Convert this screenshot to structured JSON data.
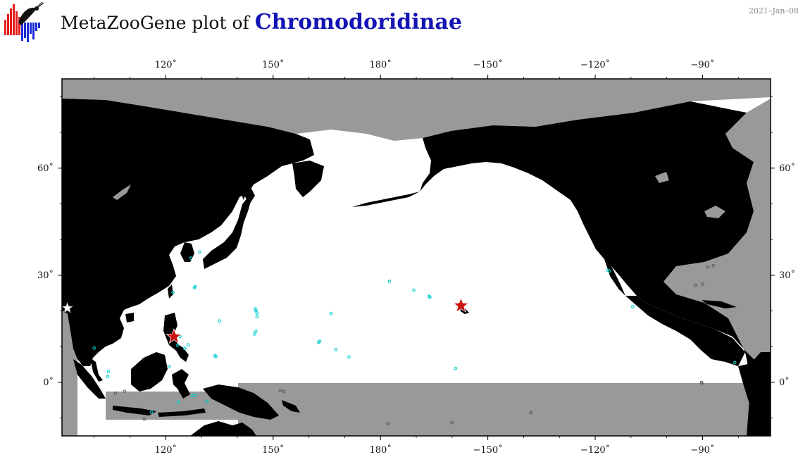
{
  "header": {
    "title_prefix": "MetaZooGene plot of",
    "taxon": "Chromodoridinae",
    "date": "2021–Jan–08"
  },
  "map": {
    "projection": "equirectangular",
    "lon_range": [
      91,
      289
    ],
    "lat_range": [
      -15,
      85
    ],
    "colors": {
      "ocean": "#ffffff",
      "land": "#000000",
      "masked": "#999999",
      "station": "#00cccc",
      "star": "#cc1111"
    },
    "top_ticks": [
      {
        "lon": 120,
        "label": "120˚"
      },
      {
        "lon": 150,
        "label": "150˚"
      },
      {
        "lon": 180,
        "label": "180˚"
      },
      {
        "lon": 210,
        "label": "−150˚"
      },
      {
        "lon": 240,
        "label": "−120˚"
      },
      {
        "lon": 270,
        "label": "−90˚"
      }
    ],
    "bottom_ticks": [
      {
        "lon": 120,
        "label": "120˚"
      },
      {
        "lon": 150,
        "label": "150˚"
      },
      {
        "lon": 180,
        "label": "180˚"
      },
      {
        "lon": 210,
        "label": "−150˚"
      },
      {
        "lon": 240,
        "label": "−120˚"
      },
      {
        "lon": 270,
        "label": "−90˚"
      }
    ],
    "left_ticks": [
      {
        "lat": 60,
        "label": "60˚"
      },
      {
        "lat": 30,
        "label": "30˚"
      },
      {
        "lat": 0,
        "label": "0˚"
      }
    ],
    "right_ticks": [
      {
        "lat": 60,
        "label": "60˚"
      },
      {
        "lat": 30,
        "label": "30˚"
      },
      {
        "lat": 0,
        "label": "0˚"
      }
    ],
    "stations": [
      [
        129.5,
        36.5
      ],
      [
        127,
        34.8
      ],
      [
        128.2,
        26.8
      ],
      [
        128,
        26.5
      ],
      [
        122,
        25.2
      ],
      [
        135,
        17.2
      ],
      [
        145,
        20.6
      ],
      [
        145.2,
        20.1
      ],
      [
        145.5,
        19.4
      ],
      [
        145.5,
        18.4
      ],
      [
        145.2,
        14.3
      ],
      [
        144.8,
        13.5
      ],
      [
        133.8,
        7.5
      ],
      [
        134,
        7.2
      ],
      [
        126.3,
        10.5
      ],
      [
        125.3,
        9.5
      ],
      [
        123.3,
        10.3
      ],
      [
        124,
        12.8
      ],
      [
        100,
        9.6
      ],
      [
        104,
        3
      ],
      [
        103.8,
        1.6
      ],
      [
        121,
        4.4
      ],
      [
        123.5,
        -5.5
      ],
      [
        127.5,
        -3.7
      ],
      [
        128.2,
        -3.7
      ],
      [
        131.5,
        -5.3
      ],
      [
        116,
        -8.4
      ],
      [
        166.2,
        19.3
      ],
      [
        163,
        11.5
      ],
      [
        162.7,
        11.2
      ],
      [
        167.5,
        9.2
      ],
      [
        171.2,
        7.1
      ],
      [
        182.5,
        28.3
      ],
      [
        189.3,
        25.8
      ],
      [
        193.6,
        24.1
      ],
      [
        193.8,
        23.9
      ],
      [
        201,
        3.9
      ],
      [
        243.5,
        31.4
      ],
      [
        244,
        31.2
      ],
      [
        250.5,
        21.2
      ],
      [
        279,
        5.5
      ]
    ],
    "masked_stations": [
      [
        108.5,
        -2.5
      ],
      [
        106,
        -3
      ],
      [
        114,
        -10.3
      ],
      [
        182,
        -11.5
      ],
      [
        200,
        -11.3
      ],
      [
        222,
        -8.5
      ],
      [
        152,
        -2.3
      ],
      [
        153,
        -2.6
      ],
      [
        269.7,
        0
      ],
      [
        269.8,
        -0.2
      ],
      [
        271.5,
        32.3
      ],
      [
        273,
        32.7
      ],
      [
        268,
        27.2
      ],
      [
        270,
        27.5
      ]
    ],
    "red_stars": [
      [
        202.5,
        21.5
      ],
      [
        122.3,
        12.8
      ]
    ],
    "white_stars": [
      [
        92.5,
        20.8
      ]
    ]
  }
}
